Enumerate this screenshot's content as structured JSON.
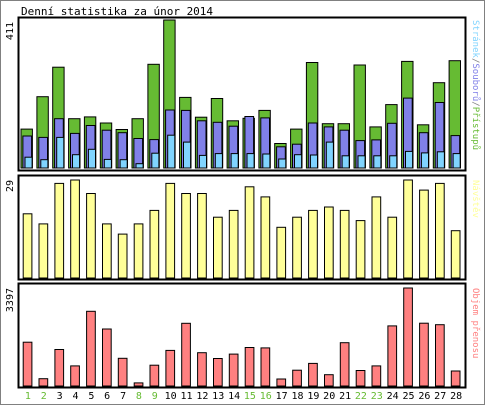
{
  "chart_data": [
    {
      "type": "bar",
      "title": "Denní statistika za únor 2014",
      "ylabel": "Stránek/Souborů/Přístupů",
      "ylabel_parts": [
        "Stránek",
        "/",
        "Souborů",
        "/",
        "Přístupů"
      ],
      "ymax_label": "411",
      "ylim": [
        0,
        411
      ],
      "categories": [
        "1",
        "2",
        "3",
        "4",
        "5",
        "6",
        "7",
        "8",
        "9",
        "10",
        "11",
        "12",
        "13",
        "14",
        "15",
        "16",
        "17",
        "18",
        "19",
        "20",
        "21",
        "22",
        "23",
        "24",
        "25",
        "26",
        "27",
        "28"
      ],
      "weekend_days": [
        "1",
        "2",
        "8",
        "9",
        "15",
        "16",
        "22",
        "23"
      ],
      "series": [
        {
          "name": "Přístupů",
          "color": "#66bb33",
          "values": [
            108,
            198,
            280,
            137,
            142,
            125,
            107,
            137,
            288,
            411,
            196,
            141,
            193,
            131,
            138,
            160,
            68,
            108,
            293,
            123,
            123,
            286,
            114,
            176,
            296,
            120,
            237,
            298
          ]
        },
        {
          "name": "Souborů",
          "color": "#8080e8",
          "values": [
            89,
            85,
            137,
            96,
            118,
            105,
            98,
            82,
            79,
            161,
            160,
            131,
            127,
            116,
            143,
            139,
            59,
            66,
            125,
            114,
            105,
            76,
            78,
            124,
            194,
            98,
            182,
            90
          ]
        },
        {
          "name": "Stránek",
          "color": "#80d4ff",
          "values": [
            30,
            23,
            85,
            37,
            52,
            24,
            23,
            12,
            41,
            91,
            72,
            35,
            40,
            40,
            40,
            39,
            25,
            37,
            36,
            72,
            34,
            34,
            34,
            34,
            46,
            42,
            45,
            40
          ]
        }
      ]
    },
    {
      "type": "bar",
      "ylabel": "Návštěv",
      "ymax_label": "29",
      "ylim": [
        0,
        29
      ],
      "categories": [
        "1",
        "2",
        "3",
        "4",
        "5",
        "6",
        "7",
        "8",
        "9",
        "10",
        "11",
        "12",
        "13",
        "14",
        "15",
        "16",
        "17",
        "18",
        "19",
        "20",
        "21",
        "22",
        "23",
        "24",
        "25",
        "26",
        "27",
        "28"
      ],
      "series": [
        {
          "name": "Návštěv",
          "color": "#ffff99",
          "values": [
            19,
            16,
            28,
            29,
            25,
            16,
            13,
            16,
            20,
            28,
            25,
            25,
            18,
            20,
            27,
            24,
            15,
            18,
            20,
            21,
            20,
            17,
            24,
            18,
            29,
            26,
            28,
            14
          ]
        }
      ]
    },
    {
      "type": "bar",
      "ylabel": "Objem přenosu",
      "ymax_label": "3397",
      "ylim": [
        0,
        3397
      ],
      "categories": [
        "1",
        "2",
        "3",
        "4",
        "5",
        "6",
        "7",
        "8",
        "9",
        "10",
        "11",
        "12",
        "13",
        "14",
        "15",
        "16",
        "17",
        "18",
        "19",
        "20",
        "21",
        "22",
        "23",
        "24",
        "25",
        "26",
        "27",
        "28"
      ],
      "series": [
        {
          "name": "Objem přenosu",
          "color": "#ff8080",
          "values": [
            1519,
            254,
            1265,
            697,
            2588,
            1977,
            960,
            108,
            722,
            1233,
            2173,
            1155,
            953,
            1105,
            1333,
            1320,
            241,
            548,
            783,
            393,
            1500,
            539,
            696,
            2082,
            3397,
            2176,
            2126,
            520
          ]
        }
      ]
    }
  ],
  "colors": {
    "weekend_label": "#66bb33",
    "weekday_label": "#000000",
    "frame": "#808080",
    "slash": "#808080"
  }
}
